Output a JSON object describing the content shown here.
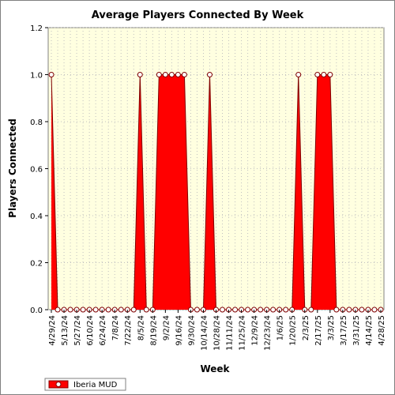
{
  "chart_data": {
    "type": "area",
    "title": "Average Players Connected By Week",
    "xlabel": "Week",
    "ylabel": "Players Connected",
    "ylim": [
      0,
      1.2
    ],
    "yticks": [
      "0.0",
      "0.2",
      "0.4",
      "0.6",
      "0.8",
      "1.0",
      "1.2"
    ],
    "x": [
      "4/29/24",
      "5/6/24",
      "5/13/24",
      "5/20/24",
      "5/27/24",
      "6/3/24",
      "6/10/24",
      "6/17/24",
      "6/24/24",
      "7/1/24",
      "7/8/24",
      "7/15/24",
      "7/22/24",
      "7/29/24",
      "8/5/24",
      "8/12/24",
      "8/19/24",
      "8/26/24",
      "9/2/24",
      "9/9/24",
      "9/16/24",
      "9/23/24",
      "9/30/24",
      "10/7/24",
      "10/14/24",
      "10/21/24",
      "10/28/24",
      "11/4/24",
      "11/11/24",
      "11/18/24",
      "11/25/24",
      "12/2/24",
      "12/9/24",
      "12/16/24",
      "12/23/24",
      "12/30/24",
      "1/6/25",
      "1/13/25",
      "1/20/25",
      "1/27/25",
      "2/3/25",
      "2/10/25",
      "2/17/25",
      "2/24/25",
      "3/3/25",
      "3/10/25",
      "3/17/25",
      "3/24/25",
      "3/31/25",
      "4/7/25",
      "4/14/25",
      "4/21/25",
      "4/28/25"
    ],
    "xtick_labels": [
      "4/29/24",
      "5/13/24",
      "5/27/24",
      "6/10/24",
      "6/24/24",
      "7/8/24",
      "7/22/24",
      "8/5/24",
      "8/19/24",
      "9/2/24",
      "9/16/24",
      "9/30/24",
      "10/14/24",
      "10/28/24",
      "11/11/24",
      "11/25/24",
      "12/9/24",
      "12/23/24",
      "1/6/25",
      "1/20/25",
      "2/3/25",
      "2/17/25",
      "3/3/25",
      "3/17/25",
      "3/31/25",
      "4/14/25",
      "4/28/25"
    ],
    "series": [
      {
        "name": "Iberia MUD",
        "color": "#ff0000",
        "values": [
          1,
          0,
          0,
          0,
          0,
          0,
          0,
          0,
          0,
          0,
          0,
          0,
          0,
          0,
          1,
          0,
          0,
          1,
          1,
          1,
          1,
          1,
          0,
          0,
          0,
          1,
          0,
          0,
          0,
          0,
          0,
          0,
          0,
          0,
          0,
          0,
          0,
          0,
          0,
          1,
          0,
          0,
          1,
          1,
          1,
          0,
          0,
          0,
          0,
          0,
          0,
          0,
          0
        ]
      }
    ],
    "grid": true,
    "legend": "bottom-left"
  }
}
